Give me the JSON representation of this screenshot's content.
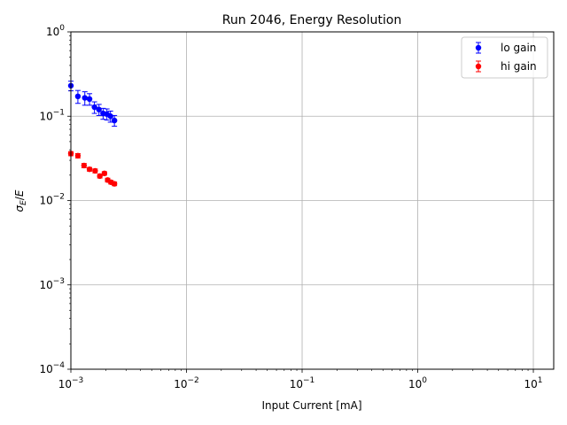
{
  "chart_data": {
    "type": "scatter",
    "title": "Run 2046, Energy Resolution",
    "xlabel": "Input Current [mA]",
    "ylabel": "σ_E/E",
    "xscale": "log",
    "yscale": "log",
    "xlim": [
      0.001,
      15
    ],
    "ylim": [
      0.0001,
      1
    ],
    "grid": true,
    "legend_position": "top-right",
    "x_ticks": [
      {
        "value": 0.001,
        "base": "10",
        "exp": "−3"
      },
      {
        "value": 0.01,
        "base": "10",
        "exp": "−2"
      },
      {
        "value": 0.1,
        "base": "10",
        "exp": "−1"
      },
      {
        "value": 1,
        "base": "10",
        "exp": "0"
      },
      {
        "value": 10,
        "base": "10",
        "exp": "1"
      }
    ],
    "y_ticks": [
      {
        "value": 0.0001,
        "base": "10",
        "exp": "−4"
      },
      {
        "value": 0.001,
        "base": "10",
        "exp": "−3"
      },
      {
        "value": 0.01,
        "base": "10",
        "exp": "−2"
      },
      {
        "value": 0.1,
        "base": "10",
        "exp": "−1"
      },
      {
        "value": 1,
        "base": "10",
        "exp": "0"
      }
    ],
    "series": [
      {
        "name": "lo gain",
        "color": "#0000ff",
        "points": [
          {
            "x": 0.001,
            "y": 0.23,
            "err": 0.03
          },
          {
            "x": 0.00115,
            "y": 0.172,
            "err": 0.03
          },
          {
            "x": 0.00132,
            "y": 0.165,
            "err": 0.03
          },
          {
            "x": 0.00145,
            "y": 0.16,
            "err": 0.025
          },
          {
            "x": 0.0016,
            "y": 0.128,
            "err": 0.02
          },
          {
            "x": 0.00175,
            "y": 0.12,
            "err": 0.018
          },
          {
            "x": 0.0019,
            "y": 0.108,
            "err": 0.016
          },
          {
            "x": 0.00205,
            "y": 0.106,
            "err": 0.016
          },
          {
            "x": 0.0022,
            "y": 0.1,
            "err": 0.015
          },
          {
            "x": 0.00238,
            "y": 0.089,
            "err": 0.013
          }
        ]
      },
      {
        "name": "hi gain",
        "color": "#ff0000",
        "points": [
          {
            "x": 0.001,
            "y": 0.036,
            "err": 0.002
          },
          {
            "x": 0.00115,
            "y": 0.034,
            "err": 0.002
          },
          {
            "x": 0.0013,
            "y": 0.026,
            "err": 0.0015
          },
          {
            "x": 0.00145,
            "y": 0.0235,
            "err": 0.0012
          },
          {
            "x": 0.00162,
            "y": 0.0225,
            "err": 0.0012
          },
          {
            "x": 0.00178,
            "y": 0.0195,
            "err": 0.001
          },
          {
            "x": 0.00195,
            "y": 0.021,
            "err": 0.001
          },
          {
            "x": 0.00208,
            "y": 0.0175,
            "err": 0.0009
          },
          {
            "x": 0.00222,
            "y": 0.0165,
            "err": 0.0008
          },
          {
            "x": 0.00238,
            "y": 0.0158,
            "err": 0.0008
          }
        ]
      }
    ]
  }
}
